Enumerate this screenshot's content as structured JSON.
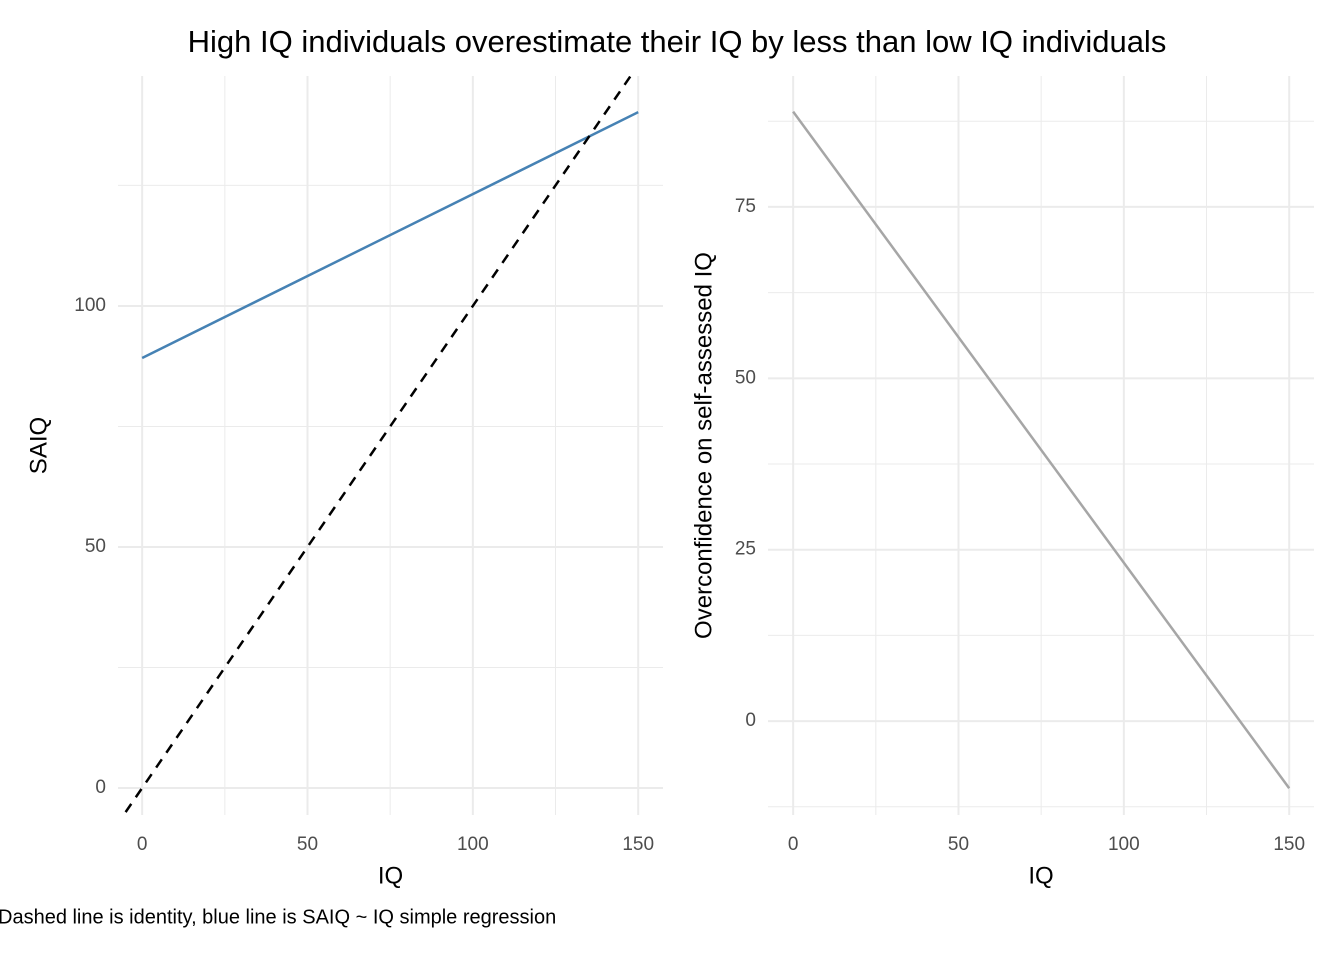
{
  "title": "High IQ individuals overestimate their IQ by less than low IQ individuals",
  "caption": "Dashed line is identity, blue line is SAIQ ~ IQ simple regression",
  "chart_data": [
    {
      "type": "line",
      "xlabel": "IQ",
      "ylabel": "SAIQ",
      "xlim": [
        -7.3,
        157.5
      ],
      "ylim": [
        -5.6,
        147.7
      ],
      "xticks": [
        0,
        50,
        100,
        150
      ],
      "yticks": [
        0,
        50,
        100
      ],
      "xminor": [
        25,
        75,
        125
      ],
      "yminor": [
        25,
        75,
        125
      ],
      "grid": true,
      "series": [
        {
          "color": "#4682b4",
          "x": [
            0,
            150
          ],
          "values": [
            89.2,
            140.2
          ]
        },
        {
          "color": "#000000",
          "dashed": true,
          "x": [
            -5,
            150
          ],
          "values": [
            -5,
            150
          ]
        }
      ]
    },
    {
      "type": "line",
      "xlabel": "IQ",
      "ylabel": "Overconfidence on self-assessed IQ",
      "xlim": [
        -7.6,
        157.5
      ],
      "ylim": [
        -13.7,
        94.1
      ],
      "xticks": [
        0,
        50,
        100,
        150
      ],
      "yticks": [
        0,
        25,
        50,
        75
      ],
      "xminor": [
        25,
        75,
        125
      ],
      "yminor": [
        -12.5,
        12.5,
        37.5,
        62.5,
        87.5
      ],
      "grid": true,
      "series": [
        {
          "color": "#a6a6a6",
          "x": [
            0,
            150
          ],
          "values": [
            88.9,
            -9.8
          ]
        }
      ]
    }
  ]
}
